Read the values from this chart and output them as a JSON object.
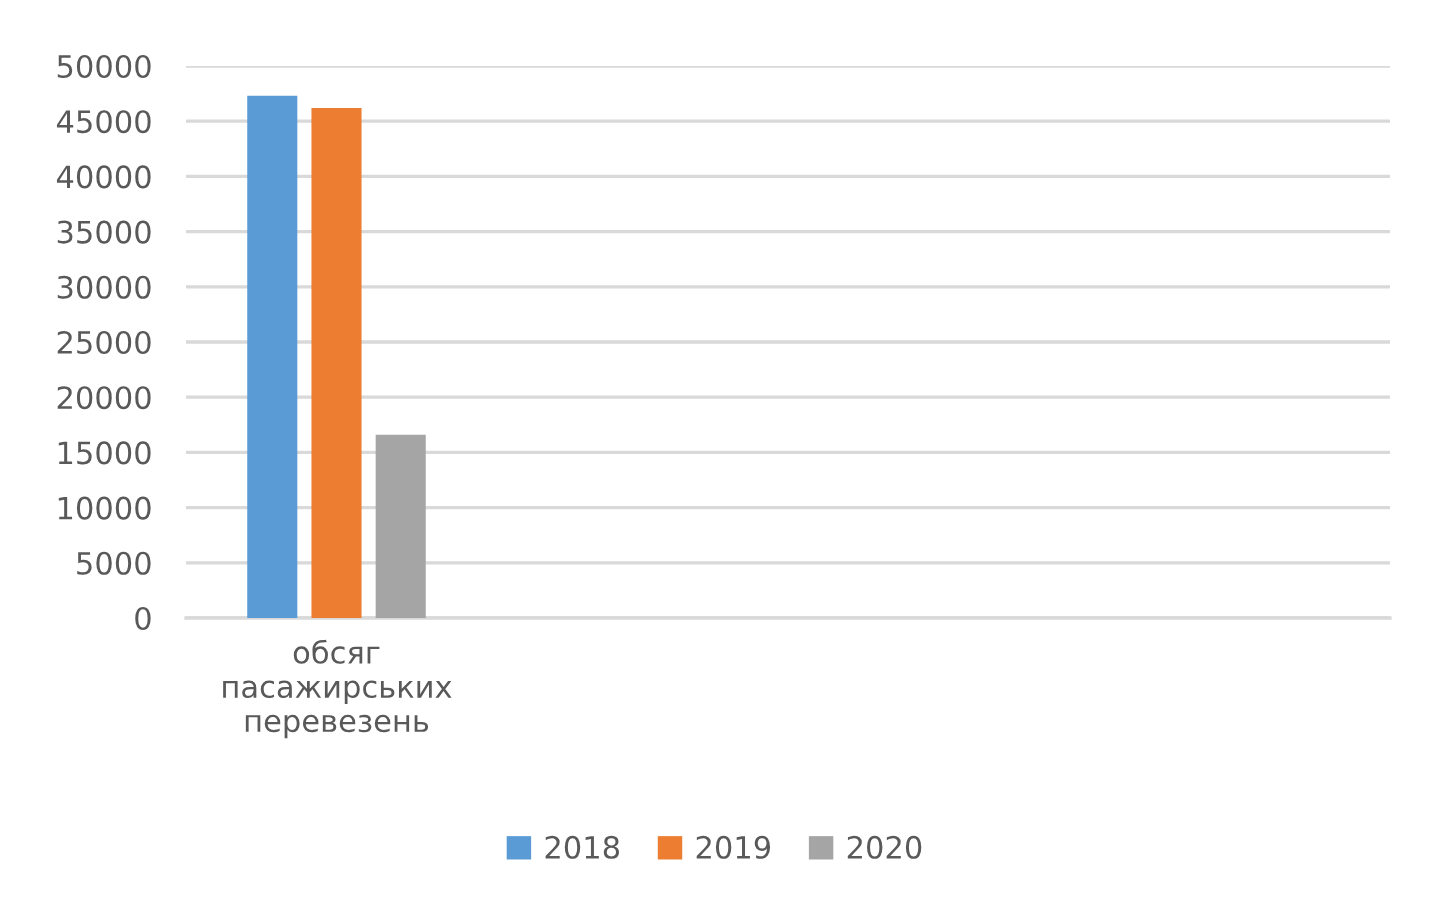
{
  "chart_data": {
    "type": "bar",
    "categories": [
      "обсяг пасажирських перевезень",
      null,
      null,
      null
    ],
    "series": [
      {
        "name": "2018",
        "color": "#5b9bd5",
        "values": [
          47300,
          null,
          null,
          null
        ]
      },
      {
        "name": "2019",
        "color": "#ed7d31",
        "values": [
          46200,
          null,
          null,
          null
        ]
      },
      {
        "name": "2020",
        "color": "#a5a5a5",
        "values": [
          16600,
          null,
          null,
          null
        ]
      }
    ],
    "ylim": [
      0,
      50000
    ],
    "yticks": [
      0,
      5000,
      10000,
      15000,
      20000,
      25000,
      30000,
      35000,
      40000,
      45000,
      50000
    ],
    "grid": "y",
    "legend": "bottom"
  }
}
